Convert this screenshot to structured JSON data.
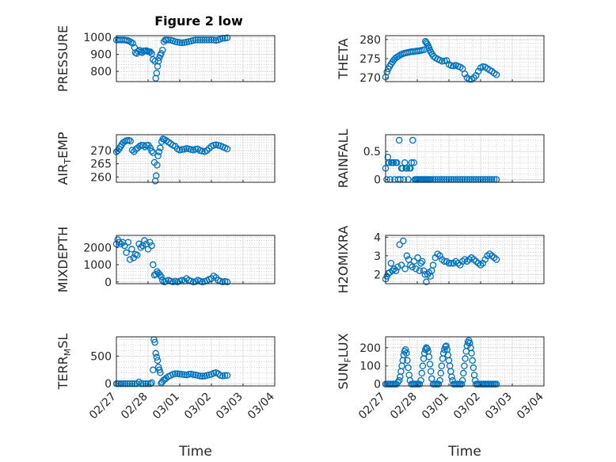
{
  "figure_title": "Figure 2 low",
  "colors": {
    "marker": "#0072bd",
    "axis": "#262626",
    "grid": "#dfdfdf",
    "minor_grid": "#b4b4b4"
  },
  "chart_data": [
    {
      "type": "scatter",
      "id": "pressure",
      "title": "Figure 2 low",
      "ylabel": "PRESSURE",
      "ylim": [
        740,
        1010
      ],
      "yticks": [
        800,
        900,
        1000
      ],
      "xlim": [
        0,
        7
      ],
      "xticks": [
        "02/27",
        "02/28",
        "03/01",
        "03/02",
        "03/03",
        "03/04"
      ],
      "xlabel": "",
      "x": [
        0,
        0.08,
        0.16,
        0.24,
        0.32,
        0.4,
        0.48,
        0.56,
        0.64,
        0.72,
        0.8,
        0.84,
        0.9,
        0.96,
        1.02,
        1.08,
        1.14,
        1.2,
        1.26,
        1.32,
        1.38,
        1.44,
        1.5,
        1.56,
        1.62,
        1.7,
        1.74,
        1.78,
        1.82,
        1.86,
        1.9,
        1.94,
        1.98,
        2.04,
        2.1,
        2.16,
        2.22,
        2.3,
        2.4,
        2.5,
        2.6,
        2.7,
        2.8,
        2.9,
        3.0,
        3.1,
        3.2,
        3.3,
        3.4,
        3.5,
        3.6,
        3.7,
        3.8,
        3.9,
        4.0,
        4.1,
        4.2,
        4.3,
        4.4,
        4.5,
        4.6,
        4.7,
        4.8,
        4.9
      ],
      "y": [
        985,
        985,
        985,
        985,
        985,
        984,
        982,
        978,
        972,
        965,
        940,
        910,
        905,
        918,
        925,
        915,
        910,
        920,
        920,
        922,
        918,
        915,
        915,
        905,
        870,
        860,
        760,
        790,
        830,
        860,
        880,
        895,
        905,
        925,
        975,
        985,
        985,
        985,
        984,
        980,
        975,
        972,
        970,
        968,
        970,
        972,
        975,
        978,
        982,
        985,
        985,
        985,
        985,
        985,
        985,
        985,
        985,
        985,
        982,
        985,
        990,
        995,
        995,
        998
      ]
    },
    {
      "type": "scatter",
      "id": "theta",
      "ylabel": "THETA",
      "ylim": [
        269,
        281
      ],
      "yticks": [
        270,
        275,
        280
      ],
      "xlim": [
        0,
        7
      ],
      "xticks": [
        "02/27",
        "02/28",
        "03/01",
        "03/02",
        "03/03",
        "03/04"
      ],
      "xlabel": "",
      "x": [
        0,
        0.06,
        0.12,
        0.18,
        0.24,
        0.3,
        0.36,
        0.42,
        0.5,
        0.58,
        0.66,
        0.74,
        0.82,
        0.9,
        0.98,
        1.06,
        1.14,
        1.22,
        1.3,
        1.38,
        1.46,
        1.54,
        1.62,
        1.7,
        1.76,
        1.8,
        1.84,
        1.88,
        1.92,
        1.96,
        2.0,
        2.06,
        2.12,
        2.2,
        2.3,
        2.4,
        2.5,
        2.6,
        2.7,
        2.8,
        2.9,
        3.0,
        3.1,
        3.2,
        3.3,
        3.4,
        3.5,
        3.6,
        3.7,
        3.8,
        3.9,
        4.0,
        4.1,
        4.2,
        4.3,
        4.4,
        4.5,
        4.6,
        4.7,
        4.8,
        4.9
      ],
      "y": [
        270.2,
        271.5,
        272.3,
        273,
        273.6,
        274.1,
        274.6,
        275,
        275.4,
        275.7,
        276,
        276.2,
        276.4,
        276.5,
        276.6,
        276.7,
        276.8,
        276.8,
        276.9,
        277,
        277,
        277.1,
        277.2,
        277.3,
        279.5,
        279.2,
        278.8,
        278.3,
        277.8,
        277.2,
        276.7,
        276.2,
        275.6,
        275.2,
        274.9,
        274.6,
        274.3,
        274.4,
        274.5,
        273.5,
        273.2,
        273.1,
        273.3,
        273,
        272.8,
        272.4,
        271,
        270,
        269.6,
        269.6,
        270,
        270.6,
        271.7,
        272.6,
        272.9,
        272.8,
        272.4,
        272,
        271.7,
        271.2,
        270.8
      ]
    },
    {
      "type": "scatter",
      "id": "air_temp",
      "ylabel": "AIR",
      "ylabel_sub": "T",
      "ylabel_rest": "EMP",
      "ylim": [
        258,
        276
      ],
      "yticks": [
        260,
        265,
        270
      ],
      "xlim": [
        0,
        7
      ],
      "xticks": [
        "02/27",
        "02/28",
        "03/01",
        "03/02",
        "03/03",
        "03/04"
      ],
      "xlabel": "",
      "x": [
        0,
        0.06,
        0.12,
        0.18,
        0.24,
        0.3,
        0.38,
        0.46,
        0.54,
        0.62,
        0.7,
        0.78,
        0.86,
        0.94,
        1.02,
        1.1,
        1.18,
        1.26,
        1.34,
        1.42,
        1.5,
        1.56,
        1.62,
        1.68,
        1.72,
        1.76,
        1.8,
        1.84,
        1.88,
        1.94,
        2.0,
        2.06,
        2.12,
        2.2,
        2.3,
        2.4,
        2.5,
        2.6,
        2.7,
        2.8,
        2.9,
        3.0,
        3.1,
        3.2,
        3.3,
        3.4,
        3.5,
        3.6,
        3.7,
        3.8,
        3.9,
        4.0,
        4.1,
        4.2,
        4.3,
        4.4,
        4.5,
        4.6,
        4.7,
        4.8,
        4.9
      ],
      "y": [
        269.5,
        270,
        270.6,
        271.5,
        272.3,
        273,
        273.5,
        273.8,
        273.9,
        273.6,
        270.2,
        269.6,
        270.5,
        271,
        271.6,
        272,
        272,
        271.4,
        272,
        272,
        271,
        269.8,
        269.2,
        265.5,
        258.5,
        260.5,
        264.5,
        268,
        269.5,
        271,
        273.4,
        274.4,
        274.2,
        273.8,
        273.2,
        272.6,
        272,
        271.6,
        270.6,
        270.2,
        270.4,
        270.5,
        270.8,
        270.6,
        270.4,
        270.2,
        270.5,
        270.6,
        270,
        269.8,
        269.6,
        270,
        270.8,
        271.6,
        272,
        272.2,
        272,
        271.8,
        271.4,
        271,
        270.6
      ]
    },
    {
      "type": "scatter",
      "id": "rainfall",
      "ylabel": "RAINFALL",
      "ylim": [
        -0.05,
        0.8
      ],
      "yticks": [
        0,
        0.5
      ],
      "xlim": [
        0,
        7
      ],
      "xticks": [
        "02/27",
        "02/28",
        "03/01",
        "03/02",
        "03/03",
        "03/04"
      ],
      "xlabel": "",
      "x": [
        0,
        0.05,
        0.1,
        0.15,
        0.2,
        0.25,
        0.3,
        0.35,
        0.4,
        0.45,
        0.5,
        0.55,
        0.6,
        0.65,
        0.7,
        0.75,
        0.8,
        0.85,
        0.9,
        0.95,
        1.0,
        1.05,
        1.1,
        1.15,
        1.2,
        1.25,
        1.3,
        1.35,
        1.4,
        1.45,
        1.5,
        1.55,
        1.6,
        1.65,
        1.7,
        1.75,
        1.8,
        1.85,
        1.9,
        1.95,
        2.0,
        2.1,
        2.2,
        2.3,
        2.4,
        2.5,
        2.6,
        2.7,
        2.8,
        2.9,
        3.0,
        3.1,
        3.2,
        3.3,
        3.4,
        3.5,
        3.6,
        3.7,
        3.8,
        3.9,
        4.0,
        4.1,
        4.2,
        4.3,
        4.4,
        4.5,
        4.6,
        4.7,
        4.8,
        4.9
      ],
      "y": [
        0.2,
        0,
        0.4,
        0.3,
        0,
        0.3,
        0.3,
        0.3,
        0,
        0.3,
        0.3,
        0,
        0.7,
        0,
        0.2,
        0.2,
        0,
        0.3,
        0.2,
        0.2,
        0,
        0.2,
        0.2,
        0.3,
        0.7,
        0.3,
        0,
        0,
        0,
        0,
        0,
        0,
        0,
        0,
        0,
        0,
        0,
        0,
        0,
        0,
        0,
        0,
        0,
        0,
        0,
        0,
        0,
        0,
        0,
        0,
        0,
        0,
        0,
        0,
        0,
        0,
        0,
        0,
        0,
        0,
        0,
        0,
        0,
        0,
        0,
        0,
        0,
        0,
        0,
        0
      ]
    },
    {
      "type": "scatter",
      "id": "mixdepth",
      "ylabel": "MIXDEPTH",
      "ylim": [
        -100,
        2700
      ],
      "yticks": [
        0,
        1000,
        2000
      ],
      "xlim": [
        0,
        7
      ],
      "xticks": [
        "02/27",
        "02/28",
        "03/01",
        "03/02",
        "03/03",
        "03/04"
      ],
      "xlabel": "",
      "x": [
        0,
        0.06,
        0.12,
        0.2,
        0.28,
        0.36,
        0.44,
        0.52,
        0.6,
        0.68,
        0.76,
        0.84,
        0.92,
        1.0,
        1.08,
        1.16,
        1.24,
        1.32,
        1.4,
        1.48,
        1.56,
        1.62,
        1.68,
        1.74,
        1.8,
        1.86,
        1.92,
        1.98,
        2.04,
        2.12,
        2.2,
        2.3,
        2.4,
        2.5,
        2.6,
        2.7,
        2.8,
        2.9,
        3.0,
        3.1,
        3.2,
        3.3,
        3.4,
        3.5,
        3.6,
        3.7,
        3.8,
        3.9,
        4.0,
        4.1,
        4.2,
        4.3,
        4.4,
        4.5,
        4.6,
        4.7,
        4.8,
        4.9
      ],
      "y": [
        2200,
        2450,
        2300,
        2200,
        2300,
        2100,
        1700,
        2300,
        1300,
        1900,
        1400,
        1600,
        1550,
        2200,
        2000,
        2100,
        2400,
        2200,
        1900,
        2300,
        2100,
        1000,
        400,
        450,
        600,
        500,
        420,
        300,
        100,
        0,
        50,
        100,
        50,
        0,
        50,
        0,
        50,
        100,
        50,
        200,
        100,
        50,
        0,
        20,
        100,
        50,
        0,
        30,
        80,
        150,
        200,
        350,
        250,
        100,
        50,
        0,
        30,
        0
      ]
    },
    {
      "type": "scatter",
      "id": "h2omixra",
      "ylabel": "H2OMIXRA",
      "ylim": [
        1.5,
        4.1
      ],
      "yticks": [
        2,
        3,
        4
      ],
      "xlim": [
        0,
        7
      ],
      "xticks": [
        "02/27",
        "02/28",
        "03/01",
        "03/02",
        "03/03",
        "03/04"
      ],
      "xlabel": "",
      "x": [
        0,
        0.06,
        0.12,
        0.18,
        0.24,
        0.3,
        0.38,
        0.46,
        0.54,
        0.62,
        0.7,
        0.78,
        0.86,
        0.94,
        1.02,
        1.1,
        1.18,
        1.26,
        1.34,
        1.42,
        1.5,
        1.56,
        1.62,
        1.68,
        1.74,
        1.8,
        1.86,
        1.92,
        1.98,
        2.04,
        2.1,
        2.2,
        2.3,
        2.4,
        2.5,
        2.6,
        2.7,
        2.8,
        2.9,
        3.0,
        3.1,
        3.2,
        3.3,
        3.4,
        3.5,
        3.6,
        3.7,
        3.8,
        3.9,
        4.0,
        4.1,
        4.2,
        4.3,
        4.4,
        4.5,
        4.6,
        4.7,
        4.8,
        4.9
      ],
      "y": [
        1.75,
        1.9,
        2.05,
        2.1,
        2.6,
        2.2,
        2.3,
        2.2,
        2.4,
        3.6,
        2.5,
        3.8,
        2.3,
        3.0,
        2.8,
        2.5,
        2.4,
        2.7,
        2.3,
        2.9,
        2.2,
        2.6,
        2.7,
        2.2,
        2.0,
        1.6,
        2.0,
        2.1,
        1.9,
        2.2,
        2.5,
        2.9,
        3.1,
        3.0,
        2.8,
        2.7,
        2.7,
        2.6,
        2.6,
        2.6,
        2.7,
        2.6,
        2.5,
        2.7,
        2.8,
        2.7,
        2.8,
        2.9,
        2.8,
        2.7,
        2.6,
        2.5,
        2.6,
        2.8,
        3.0,
        3.1,
        3.0,
        2.9,
        2.8
      ]
    },
    {
      "type": "scatter",
      "id": "terr_msl",
      "ylabel": "TERR",
      "ylabel_sub": "M",
      "ylabel_rest": "SL",
      "ylim": [
        -40,
        850
      ],
      "yticks": [
        0,
        500
      ],
      "xlim": [
        0,
        7
      ],
      "xticks": [
        "02/27",
        "02/28",
        "03/01",
        "03/02",
        "03/03",
        "03/04"
      ],
      "xlabel": "Time",
      "x": [
        0,
        0.06,
        0.12,
        0.2,
        0.3,
        0.4,
        0.5,
        0.6,
        0.7,
        0.8,
        0.9,
        1.0,
        1.1,
        1.2,
        1.3,
        1.4,
        1.5,
        1.56,
        1.62,
        1.66,
        1.7,
        1.74,
        1.78,
        1.82,
        1.86,
        1.9,
        1.94,
        1.98,
        2.02,
        2.08,
        2.14,
        2.2,
        2.3,
        2.4,
        2.5,
        2.6,
        2.7,
        2.8,
        2.9,
        3.0,
        3.1,
        3.2,
        3.3,
        3.4,
        3.5,
        3.6,
        3.7,
        3.8,
        3.9,
        4.0,
        4.1,
        4.2,
        4.3,
        4.4,
        4.5,
        4.6,
        4.7,
        4.8,
        4.9
      ],
      "y": [
        0,
        0,
        0,
        0,
        0,
        0,
        0,
        0,
        0,
        0,
        0,
        30,
        0,
        0,
        0,
        0,
        0,
        20,
        250,
        800,
        750,
        550,
        480,
        420,
        300,
        250,
        200,
        10,
        30,
        60,
        80,
        100,
        130,
        150,
        170,
        180,
        180,
        175,
        170,
        165,
        160,
        170,
        175,
        165,
        160,
        150,
        140,
        135,
        140,
        150,
        160,
        170,
        190,
        200,
        180,
        150,
        140,
        150,
        150
      ]
    },
    {
      "type": "scatter",
      "id": "sun_flux",
      "ylabel": "SUN",
      "ylabel_sub": "F",
      "ylabel_rest": "LUX",
      "ylim": [
        -10,
        260
      ],
      "yticks": [
        0,
        100,
        200
      ],
      "xlim": [
        0,
        7
      ],
      "xticks": [
        "02/27",
        "02/28",
        "03/01",
        "03/02",
        "03/03",
        "03/04"
      ],
      "xlabel": "Time",
      "x": [
        0,
        0.06,
        0.12,
        0.18,
        0.24,
        0.3,
        0.36,
        0.42,
        0.48,
        0.54,
        0.6,
        0.64,
        0.68,
        0.72,
        0.76,
        0.8,
        0.84,
        0.88,
        0.92,
        0.96,
        1.0,
        1.04,
        1.08,
        1.14,
        1.2,
        1.26,
        1.32,
        1.38,
        1.44,
        1.5,
        1.56,
        1.6,
        1.64,
        1.68,
        1.72,
        1.76,
        1.8,
        1.84,
        1.88,
        1.92,
        1.96,
        2.0,
        2.04,
        2.1,
        2.16,
        2.22,
        2.28,
        2.34,
        2.4,
        2.44,
        2.48,
        2.52,
        2.56,
        2.6,
        2.64,
        2.68,
        2.72,
        2.76,
        2.8,
        2.84,
        2.88,
        2.92,
        2.96,
        3.0,
        3.06,
        3.12,
        3.18,
        3.24,
        3.3,
        3.36,
        3.4,
        3.44,
        3.48,
        3.52,
        3.56,
        3.6,
        3.64,
        3.68,
        3.72,
        3.76,
        3.8,
        3.84,
        3.88,
        3.92,
        3.96,
        4.0,
        4.06,
        4.12,
        4.18,
        4.24,
        4.3,
        4.36,
        4.42,
        4.48,
        4.54,
        4.6,
        4.66,
        4.72,
        4.78,
        4.84,
        4.9
      ],
      "y": [
        0,
        0,
        0,
        0,
        0,
        0,
        0,
        0,
        0,
        10,
        20,
        40,
        70,
        100,
        130,
        160,
        180,
        190,
        170,
        130,
        90,
        50,
        20,
        0,
        0,
        0,
        0,
        0,
        0,
        0,
        20,
        60,
        100,
        140,
        170,
        190,
        200,
        195,
        180,
        150,
        110,
        70,
        30,
        0,
        0,
        0,
        0,
        0,
        20,
        60,
        100,
        140,
        170,
        190,
        205,
        210,
        190,
        160,
        130,
        100,
        70,
        40,
        20,
        0,
        0,
        0,
        0,
        0,
        0,
        0,
        20,
        60,
        100,
        140,
        180,
        210,
        230,
        240,
        225,
        200,
        170,
        130,
        90,
        50,
        20,
        0,
        0,
        0,
        0,
        0,
        0,
        0,
        0,
        0,
        0,
        0,
        0,
        0,
        0,
        0,
        0
      ]
    }
  ]
}
